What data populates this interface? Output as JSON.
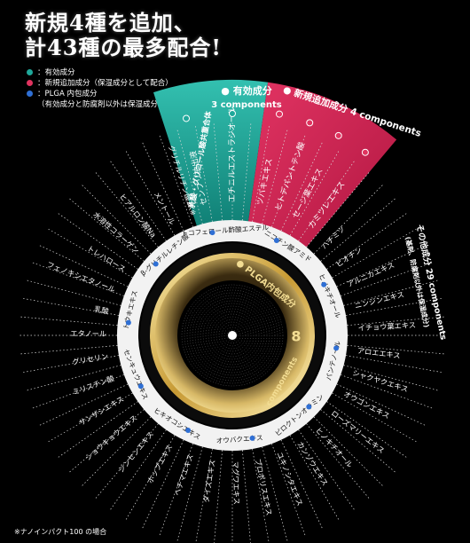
{
  "headline": {
    "line1": "新規4種を追加、",
    "line2": "計43種の最多配合!"
  },
  "legend": [
    {
      "text": "：有効成分",
      "color": "#1fa89a"
    },
    {
      "text": "：新規追加成分（保湿成分として配合）",
      "color": "#e0335f"
    },
    {
      "text": "：PLGA 内包成分",
      "sub": "（有効成分と防腐剤以外は保湿成分）",
      "color": "#2f6fd4"
    }
  ],
  "groups": {
    "active": {
      "label": "有効成分",
      "count": "3",
      "unit": "components",
      "color": "#1fa89a"
    },
    "new": {
      "label": "新規追加成分",
      "count": "4",
      "unit": "components",
      "color": "#e0335f"
    },
    "other": {
      "label": "その他成分",
      "count": "29",
      "unit": "components",
      "note": "(基剤、防腐剤以外は保湿成分)"
    },
    "plga": {
      "label": "PLGA内包成分",
      "count": "8",
      "unit": "components",
      "color": "#2f6fd4"
    }
  },
  "active_items": [
    "センブリ抽出液",
    "エチニルエストラジオール"
  ],
  "new_items": [
    "ツバキエキス",
    "ヒトデパントテン酸",
    "セージ葉エキス",
    "カミツレエキス"
  ],
  "outer_items": [
    "ハチミツ",
    "ビオチン",
    "アルニカエキス",
    "ニンジンエキス",
    "イチョウ葉エキス",
    "アロエエキス",
    "シャクヤクエキス",
    "オウゴンエキス",
    "ローズマリーエキス",
    "ヒノキチオール",
    "カンゾウエキス",
    "ユキノシタエキス",
    "プロポリスエキス",
    "マグワエキス",
    "ダイズエキス",
    "ヘチマエキス",
    "ホップエキス",
    "ジンセンエキス",
    "ショウキョウエキス",
    "サンザシエキス",
    "ミリスチン酸",
    "グリセリン",
    "エタノール",
    "乳酸",
    "フェノキシエタノール",
    "トレハロース",
    "水溶性コラーゲン",
    "ヒアルロン酸Na",
    "メントール",
    "グリチルリチン酸2K※"
  ],
  "ring_items": [
    "β-グリチルレチン酸",
    "トコフェロール酢酸エステル",
    "ニコチン酸アミド",
    "ヒノキチオール",
    "パンテノール",
    "ピロクトンオラミン",
    "オウバクエキス",
    "ヒキオコシエキス",
    "センキュウエキス",
    "トウキエキス"
  ],
  "inner_label": "乳酸・グリコール酸共重合体",
  "footnote": "※ナノインパクト100 の場合",
  "colors": {
    "gold": "#c9a54a",
    "ring": "#f2f2f2",
    "dotblue": "#2f6fd4"
  }
}
